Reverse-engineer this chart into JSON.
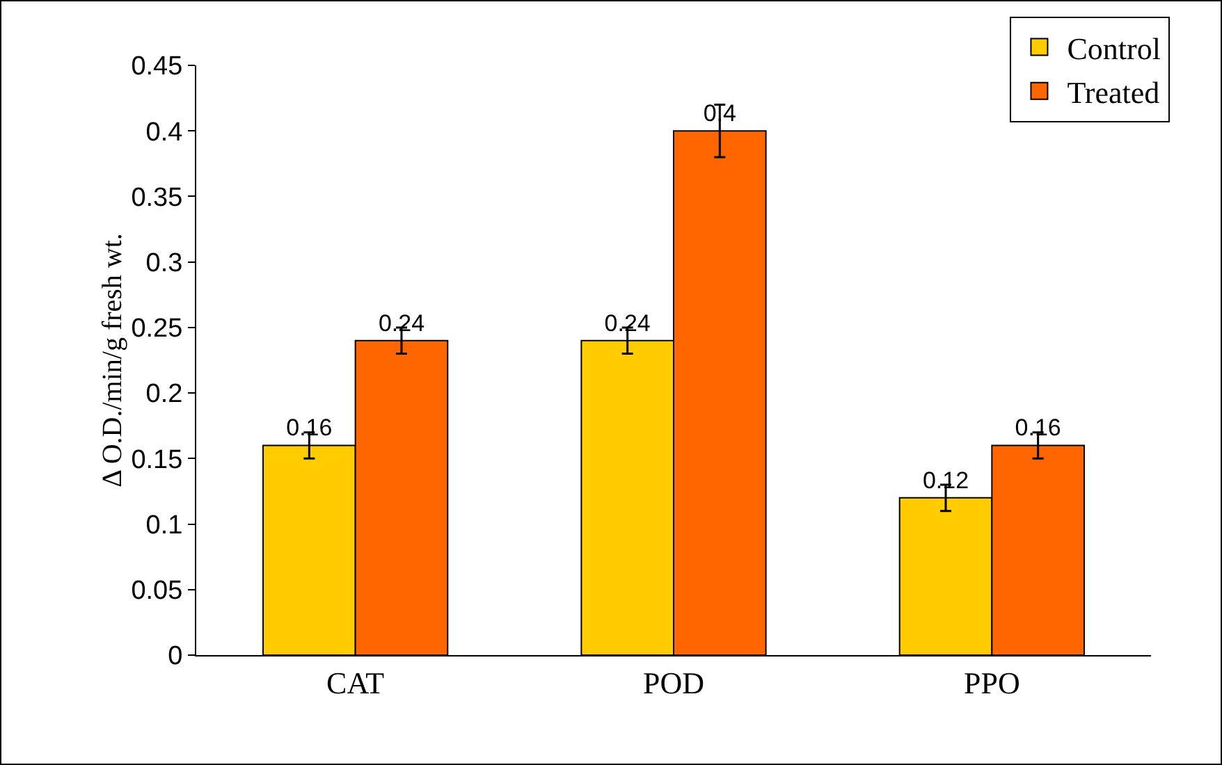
{
  "chart_data": {
    "type": "bar",
    "ylabel": "Δ O.D./min/g fresh wt.",
    "categories": [
      "CAT",
      "POD",
      "PPO"
    ],
    "series": [
      {
        "name": "Control",
        "color": "#ffcc00",
        "values": [
          0.16,
          0.24,
          0.12
        ],
        "errors": [
          0.01,
          0.01,
          0.01
        ]
      },
      {
        "name": "Treated",
        "color": "#ff6600",
        "values": [
          0.24,
          0.4,
          0.16
        ],
        "errors": [
          0.01,
          0.02,
          0.01
        ]
      }
    ],
    "ylim": [
      0,
      0.45
    ],
    "yticks": [
      0,
      0.05,
      0.1,
      0.15,
      0.2,
      0.25,
      0.3,
      0.35,
      0.4,
      0.45
    ],
    "data_labels": true,
    "grid": false,
    "legend": "top right"
  }
}
